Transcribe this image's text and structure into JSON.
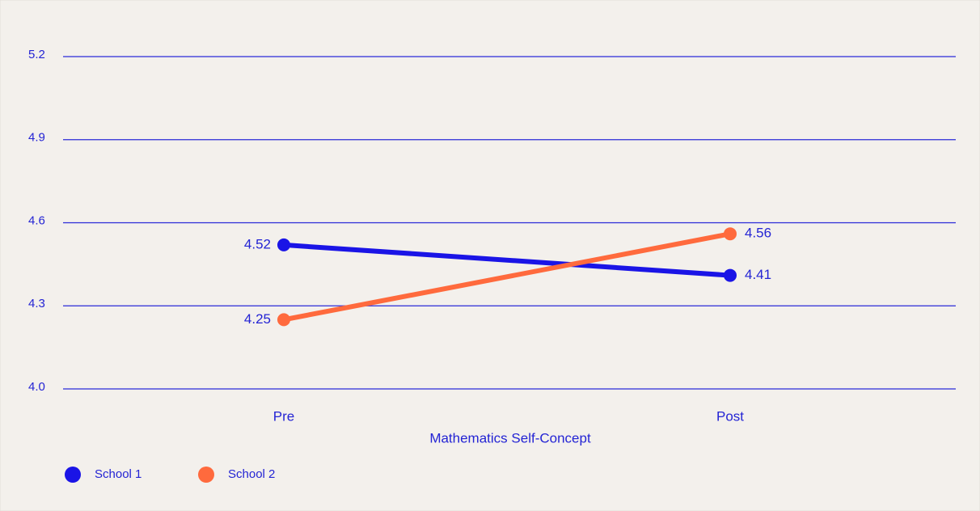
{
  "chart_data": {
    "type": "line",
    "x_label": "Mathematics Self-Concept",
    "categories": [
      "Pre",
      "Post"
    ],
    "series": [
      {
        "name": "School 1",
        "color": "#1a14e6",
        "values": [
          4.52,
          4.41
        ]
      },
      {
        "name": "School 2",
        "color": "#ff6a3d",
        "values": [
          4.25,
          4.56
        ]
      }
    ],
    "ylim": [
      4.0,
      5.2
    ],
    "yticks": [
      {
        "value": 4,
        "label": "4.0"
      },
      4.3,
      4.6,
      4.9,
      5.2
    ],
    "grid": true,
    "grid_color": "#2a2ad8",
    "legend": "bottom-left"
  }
}
